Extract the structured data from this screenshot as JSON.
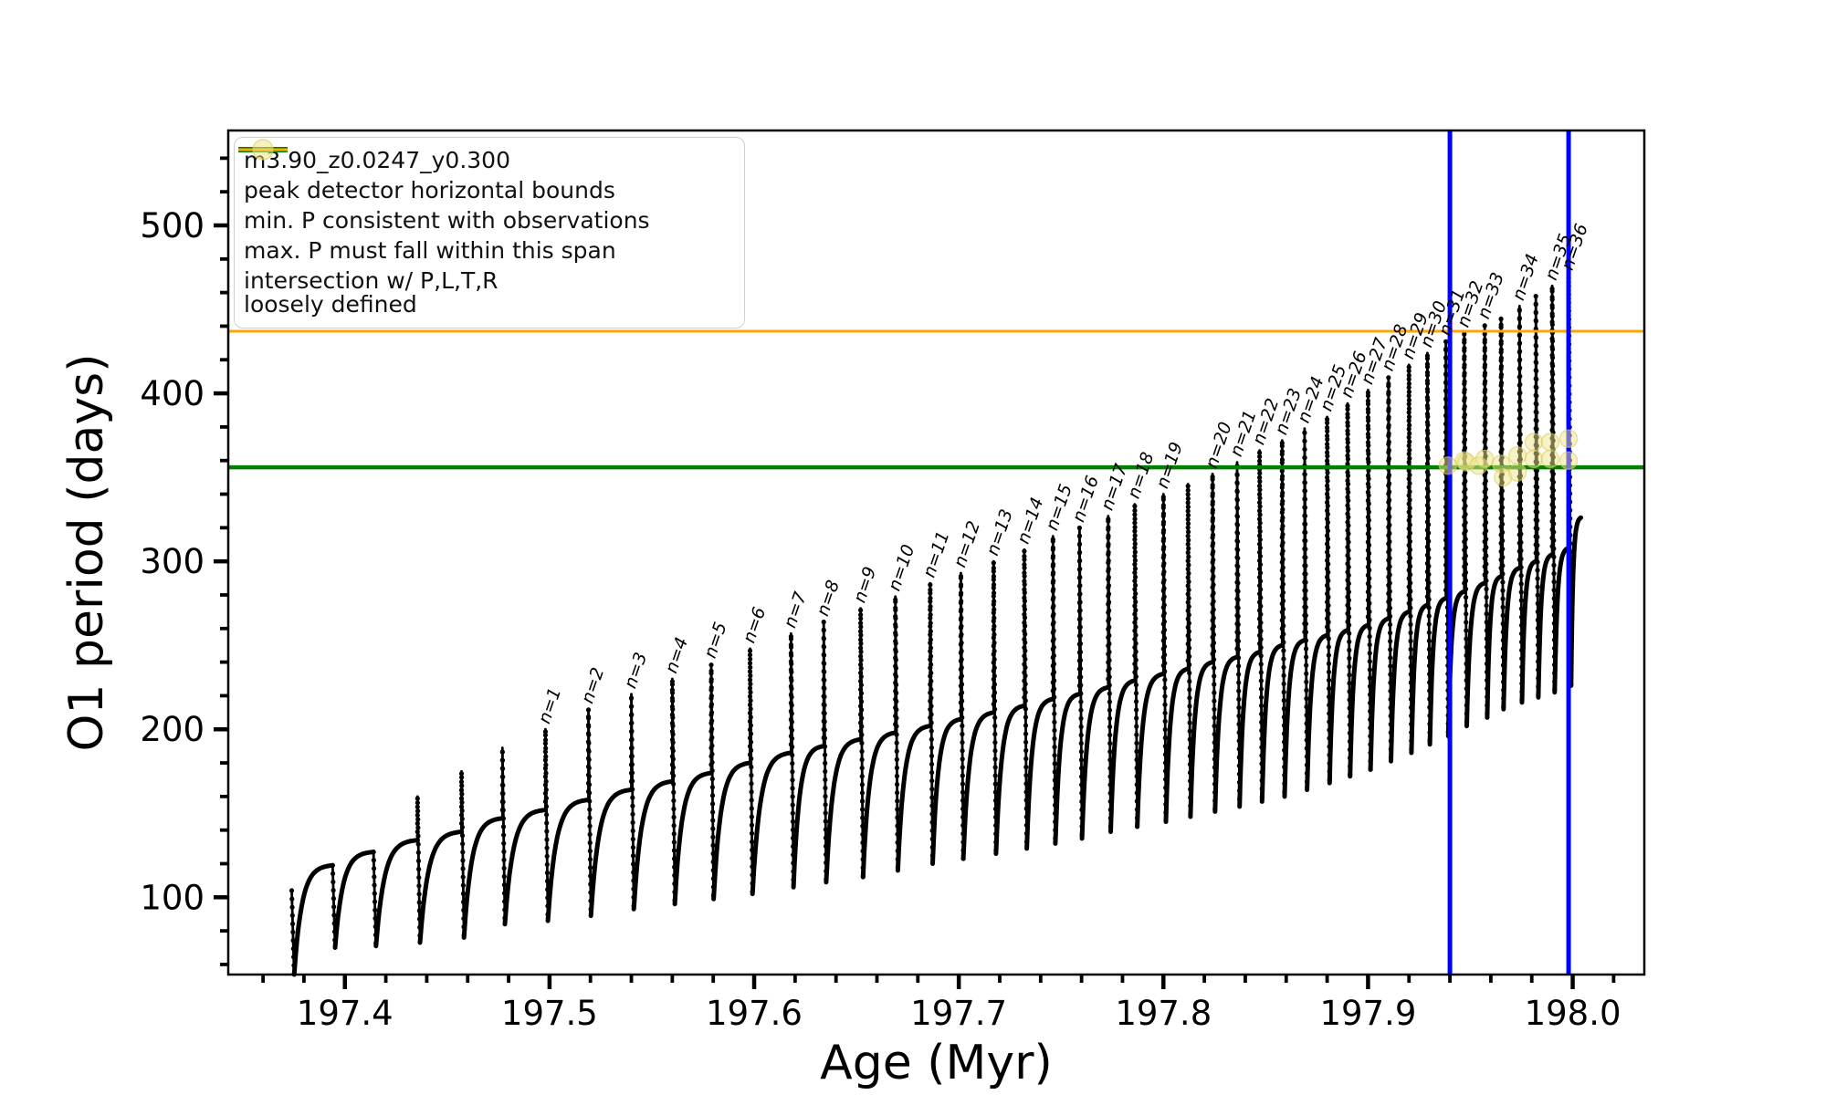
{
  "figure": {
    "background": "#ffffff"
  },
  "legend": {
    "entries": [
      {
        "label": "m3.90_z0.0247_y0.300",
        "type": "line-marker",
        "color": "#000000"
      },
      {
        "label": "peak detector horizontal bounds",
        "type": "line-thick",
        "color": "#0000ff"
      },
      {
        "label": "min. P consistent with observations",
        "type": "line-thick",
        "color": "#008000"
      },
      {
        "label": "max. P must fall within this span",
        "type": "line-thin",
        "color": "#ffa500"
      },
      {
        "label": "intersection w/ P,L,T,R\nloosely defined",
        "type": "dot",
        "color": "#f0e68c"
      }
    ]
  },
  "chart_data": {
    "type": "line",
    "title": "",
    "xlabel": "Age (Myr)",
    "ylabel": "O1 period (days)",
    "series_label": "m3.90_z0.0247_y0.300",
    "xlim": [
      197.343,
      198.035
    ],
    "ylim": [
      54,
      556.5
    ],
    "grid": false,
    "legend_position": "upper left",
    "xticks": {
      "values": [
        197.4,
        197.5,
        197.6,
        197.7,
        197.8,
        197.9,
        198.0
      ],
      "labels": [
        "197.4",
        "197.5",
        "197.6",
        "197.7",
        "197.8",
        "197.9",
        "198.0"
      ],
      "minor_step": 0.02
    },
    "yticks": {
      "values": [
        100,
        200,
        300,
        400,
        500
      ],
      "labels": [
        "100",
        "200",
        "300",
        "400",
        "500"
      ],
      "minor_step": 20
    },
    "hlines": [
      {
        "name": "min. P consistent with observations",
        "y": 356,
        "color": "#008000",
        "lw": 4.5
      },
      {
        "name": "max. P must fall within this span",
        "y": 437,
        "color": "#ffa500",
        "lw": 3
      }
    ],
    "vlines": [
      {
        "name": "peak detector horizontal bound left",
        "x": 197.94,
        "color": "#0000ff",
        "lw": 5
      },
      {
        "name": "peak detector horizontal bound right",
        "x": 197.998,
        "color": "#0000ff",
        "lw": 5
      }
    ],
    "curve": {
      "color": "#000000",
      "intro": {
        "age": 197.374,
        "from": 104,
        "to": 54
      },
      "cycles": [
        {
          "label": null,
          "end": 197.394,
          "dip": 54,
          "plateau": 119,
          "peak": null
        },
        {
          "label": null,
          "end": 197.414,
          "dip": 70,
          "plateau": 127,
          "peak": null
        },
        {
          "label": null,
          "end": 197.4355,
          "dip": 71,
          "plateau": 134,
          "peak": 160
        },
        {
          "label": null,
          "end": 197.457,
          "dip": 73,
          "plateau": 139,
          "peak": 175
        },
        {
          "label": null,
          "end": 197.477,
          "dip": 76,
          "plateau": 147,
          "peak": 189
        },
        {
          "label": "n=1",
          "end": 197.498,
          "dip": 84,
          "plateau": 152,
          "peak": 200
        },
        {
          "label": "n=2",
          "end": 197.519,
          "dip": 86,
          "plateau": 158,
          "peak": 212
        },
        {
          "label": "n=3",
          "end": 197.54,
          "dip": 89,
          "plateau": 164,
          "peak": 221
        },
        {
          "label": "n=4",
          "end": 197.56,
          "dip": 93,
          "plateau": 169,
          "peak": 230
        },
        {
          "label": "n=5",
          "end": 197.579,
          "dip": 96,
          "plateau": 174,
          "peak": 239
        },
        {
          "label": "n=6",
          "end": 197.598,
          "dip": 99,
          "plateau": 180,
          "peak": 248
        },
        {
          "label": "n=7",
          "end": 197.618,
          "dip": 102,
          "plateau": 186,
          "peak": 257
        },
        {
          "label": "n=8",
          "end": 197.634,
          "dip": 106,
          "plateau": 190,
          "peak": 264
        },
        {
          "label": "n=9",
          "end": 197.652,
          "dip": 109,
          "plateau": 194,
          "peak": 272
        },
        {
          "label": "n=10",
          "end": 197.669,
          "dip": 112,
          "plateau": 198,
          "peak": 279
        },
        {
          "label": "n=11",
          "end": 197.686,
          "dip": 116,
          "plateau": 202,
          "peak": 287
        },
        {
          "label": "n=12",
          "end": 197.701,
          "dip": 120,
          "plateau": 206,
          "peak": 293
        },
        {
          "label": "n=13",
          "end": 197.717,
          "dip": 123,
          "plateau": 210,
          "peak": 300
        },
        {
          "label": "n=14",
          "end": 197.732,
          "dip": 126,
          "plateau": 214,
          "peak": 307
        },
        {
          "label": "n=15",
          "end": 197.746,
          "dip": 129,
          "plateau": 218,
          "peak": 315
        },
        {
          "label": "n=16",
          "end": 197.759,
          "dip": 132,
          "plateau": 221,
          "peak": 320
        },
        {
          "label": "n=17",
          "end": 197.773,
          "dip": 135,
          "plateau": 225,
          "peak": 327
        },
        {
          "label": "n=18",
          "end": 197.786,
          "dip": 139,
          "plateau": 229,
          "peak": 334
        },
        {
          "label": "n=19",
          "end": 197.8,
          "dip": 142,
          "plateau": 233,
          "peak": 340
        },
        {
          "label": null,
          "end": 197.812,
          "dip": 145,
          "plateau": 236,
          "peak": 346
        },
        {
          "label": "n=20",
          "end": 197.824,
          "dip": 148,
          "plateau": 240,
          "peak": 352
        },
        {
          "label": "n=21",
          "end": 197.836,
          "dip": 151,
          "plateau": 243,
          "peak": 359
        },
        {
          "label": "n=22",
          "end": 197.847,
          "dip": 154,
          "plateau": 246,
          "peak": 366
        },
        {
          "label": "n=23",
          "end": 197.858,
          "dip": 157,
          "plateau": 250,
          "peak": 372
        },
        {
          "label": "n=24",
          "end": 197.869,
          "dip": 160,
          "plateau": 253,
          "peak": 379
        },
        {
          "label": "n=25",
          "end": 197.88,
          "dip": 164,
          "plateau": 256,
          "peak": 386
        },
        {
          "label": "n=26",
          "end": 197.89,
          "dip": 168,
          "plateau": 259,
          "peak": 394
        },
        {
          "label": "n=27",
          "end": 197.9,
          "dip": 172,
          "plateau": 262,
          "peak": 402
        },
        {
          "label": "n=28",
          "end": 197.91,
          "dip": 176,
          "plateau": 266,
          "peak": 410
        },
        {
          "label": "n=29",
          "end": 197.92,
          "dip": 181,
          "plateau": 270,
          "peak": 417
        },
        {
          "label": "n=30",
          "end": 197.929,
          "dip": 186,
          "plateau": 274,
          "peak": 424
        },
        {
          "label": "n=31",
          "end": 197.938,
          "dip": 191,
          "plateau": 278,
          "peak": 431
        },
        {
          "label": "n=32",
          "end": 197.947,
          "dip": 196,
          "plateau": 282,
          "peak": 436
        },
        {
          "label": "n=33",
          "end": 197.957,
          "dip": 202,
          "plateau": 287,
          "peak": 441
        },
        {
          "label": null,
          "end": 197.965,
          "dip": 207,
          "plateau": 291,
          "peak": 445
        },
        {
          "label": "n=34",
          "end": 197.974,
          "dip": 212,
          "plateau": 296,
          "peak": 452
        },
        {
          "label": null,
          "end": 197.982,
          "dip": 216,
          "plateau": 300,
          "peak": 458
        },
        {
          "label": "n=35",
          "end": 197.99,
          "dip": 219,
          "plateau": 304,
          "peak": 464
        },
        {
          "label": "n=36",
          "end": 197.998,
          "dip": 222,
          "plateau": 308,
          "peak": 470
        },
        {
          "label": null,
          "end": 198.004,
          "dip": 226,
          "plateau": 326,
          "peak": null
        }
      ]
    },
    "peak_labels_rotation_deg": -71,
    "intersections": {
      "color": "#f0e68c",
      "edge_color": "#d9cc55",
      "points": [
        [
          197.939,
          357
        ],
        [
          197.947,
          360
        ],
        [
          197.948,
          359
        ],
        [
          197.954,
          357
        ],
        [
          197.957,
          361
        ],
        [
          197.965,
          358
        ],
        [
          197.966,
          350
        ],
        [
          197.973,
          363
        ],
        [
          197.973,
          353
        ],
        [
          197.981,
          371
        ],
        [
          197.981,
          361
        ],
        [
          197.989,
          371
        ],
        [
          197.989,
          361
        ],
        [
          197.998,
          373
        ],
        [
          197.998,
          360
        ]
      ]
    }
  }
}
